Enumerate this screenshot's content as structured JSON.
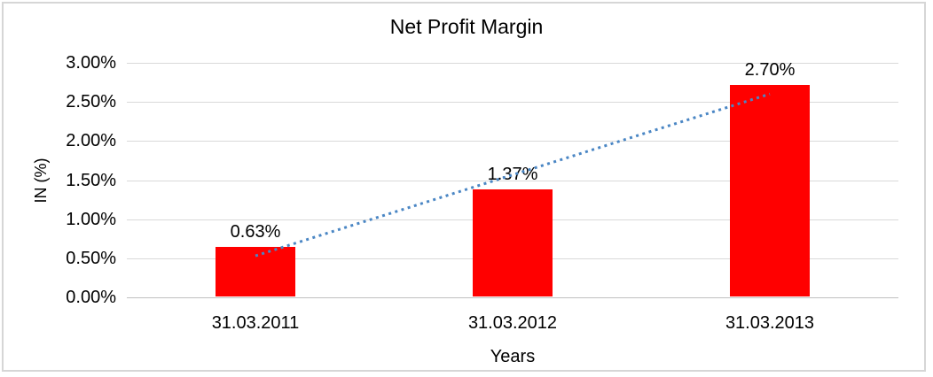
{
  "chart_data": {
    "type": "bar",
    "title": "Net Profit Margin",
    "xlabel": "Years",
    "ylabel": "IN (%)",
    "categories": [
      "31.03.2011",
      "31.03.2012",
      "31.03.2013"
    ],
    "values": [
      0.63,
      1.37,
      2.7
    ],
    "data_labels": [
      "0.63%",
      "1.37%",
      "2.70%"
    ],
    "y_tick_labels": [
      "0.00%",
      "0.50%",
      "1.00%",
      "1.50%",
      "2.00%",
      "2.50%",
      "3.00%"
    ],
    "ylim": [
      0,
      3
    ],
    "y_step": 0.5,
    "grid": true,
    "legend": false,
    "bar_color": "#ff0000",
    "trendline": {
      "type": "linear",
      "style": "dotted",
      "color": "#4a86c4"
    },
    "colors": {
      "gridline": "#d9d9d9",
      "axis_line": "#c0c0c0",
      "text": "#000000",
      "frame_border": "#d6d6d6",
      "background": "#ffffff"
    }
  }
}
